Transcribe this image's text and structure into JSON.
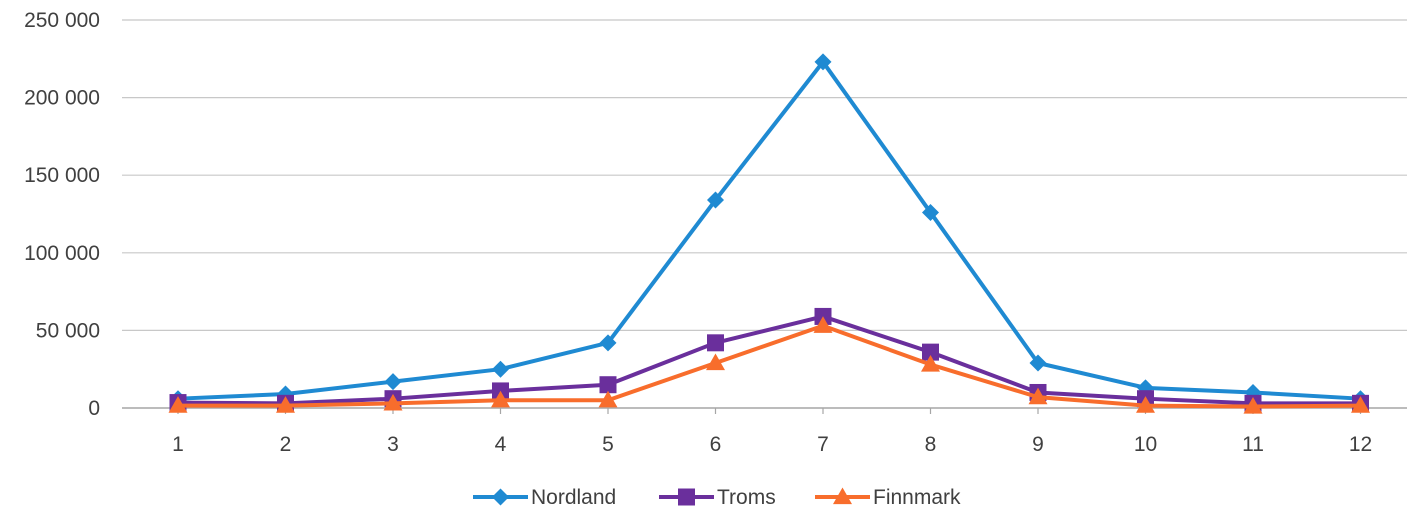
{
  "chart_data": {
    "type": "line",
    "x": [
      "1",
      "2",
      "3",
      "4",
      "5",
      "6",
      "7",
      "8",
      "9",
      "10",
      "11",
      "12"
    ],
    "y_ticks": [
      {
        "value": 0,
        "label": "0"
      },
      {
        "value": 50000,
        "label": "50 000"
      },
      {
        "value": 100000,
        "label": "100 000"
      },
      {
        "value": 150000,
        "label": "150 000"
      },
      {
        "value": 200000,
        "label": "200 000"
      },
      {
        "value": 250000,
        "label": "250 000"
      }
    ],
    "ylim": [
      0,
      250000
    ],
    "grid": "horizontal",
    "legend_position": "bottom",
    "series": [
      {
        "name": "Nordland",
        "color": "#1f8ad2",
        "marker": "diamond",
        "values": [
          6000,
          9000,
          17000,
          25000,
          42000,
          134000,
          223000,
          126000,
          29000,
          13000,
          10000,
          6000
        ]
      },
      {
        "name": "Troms",
        "color": "#6a2f9c",
        "marker": "square",
        "values": [
          3500,
          3000,
          6000,
          11000,
          15000,
          42000,
          59000,
          36000,
          10000,
          6000,
          3000,
          3000
        ]
      },
      {
        "name": "Finnmark",
        "color": "#f86d2c",
        "marker": "triangle",
        "values": [
          1500,
          1500,
          3000,
          5000,
          5000,
          29000,
          53000,
          28000,
          7000,
          1500,
          1000,
          1500
        ]
      }
    ]
  }
}
